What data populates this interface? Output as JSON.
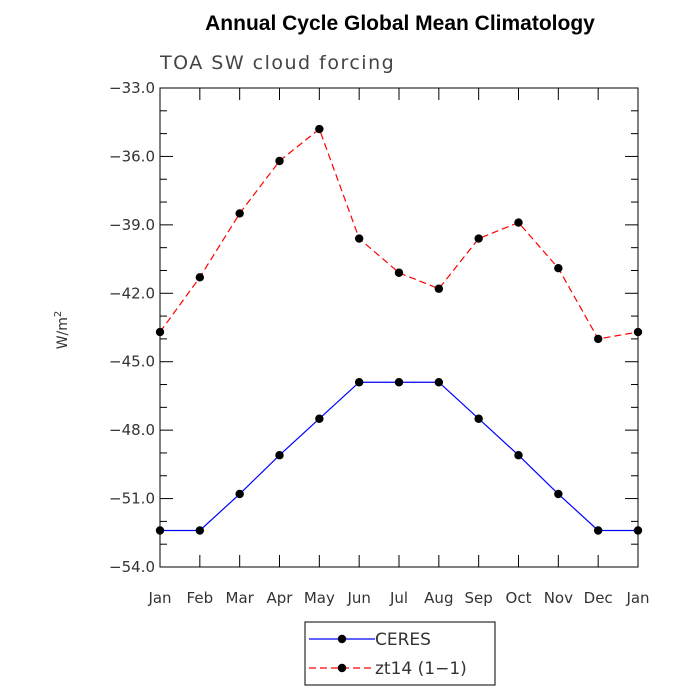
{
  "chart_data": {
    "type": "line",
    "title": "Annual Cycle Global Mean Climatology",
    "subtitle": "TOA SW cloud forcing",
    "ylabel": "W/m",
    "ylabel_superscript": "2",
    "xlabel": "",
    "categories": [
      "Jan",
      "Feb",
      "Mar",
      "Apr",
      "May",
      "Jun",
      "Jul",
      "Aug",
      "Sep",
      "Oct",
      "Nov",
      "Dec",
      "Jan"
    ],
    "ylim": [
      -54.0,
      -33.0
    ],
    "yticks": [
      -33.0,
      -36.0,
      -39.0,
      -42.0,
      -45.0,
      -48.0,
      -51.0,
      -54.0
    ],
    "ytick_labels": [
      "−33.0",
      "−36.0",
      "−39.0",
      "−42.0",
      "−45.0",
      "−48.0",
      "−51.0",
      "−54.0"
    ],
    "series": [
      {
        "name": "CERES",
        "color": "#0000ff",
        "dash": "solid",
        "values": [
          -52.4,
          -52.4,
          -50.8,
          -49.1,
          -47.5,
          -45.9,
          -45.9,
          -45.9,
          -47.5,
          -49.1,
          -50.8,
          -52.4,
          -52.4
        ]
      },
      {
        "name": "zt14 (1−1)",
        "color": "#ff0000",
        "dash": "dashed",
        "values": [
          -43.7,
          -41.3,
          -38.5,
          -36.2,
          -34.8,
          -39.6,
          -41.1,
          -41.8,
          -39.6,
          -38.9,
          -40.9,
          -44.0,
          -43.7
        ]
      }
    ],
    "legend_position": "bottom-center"
  }
}
